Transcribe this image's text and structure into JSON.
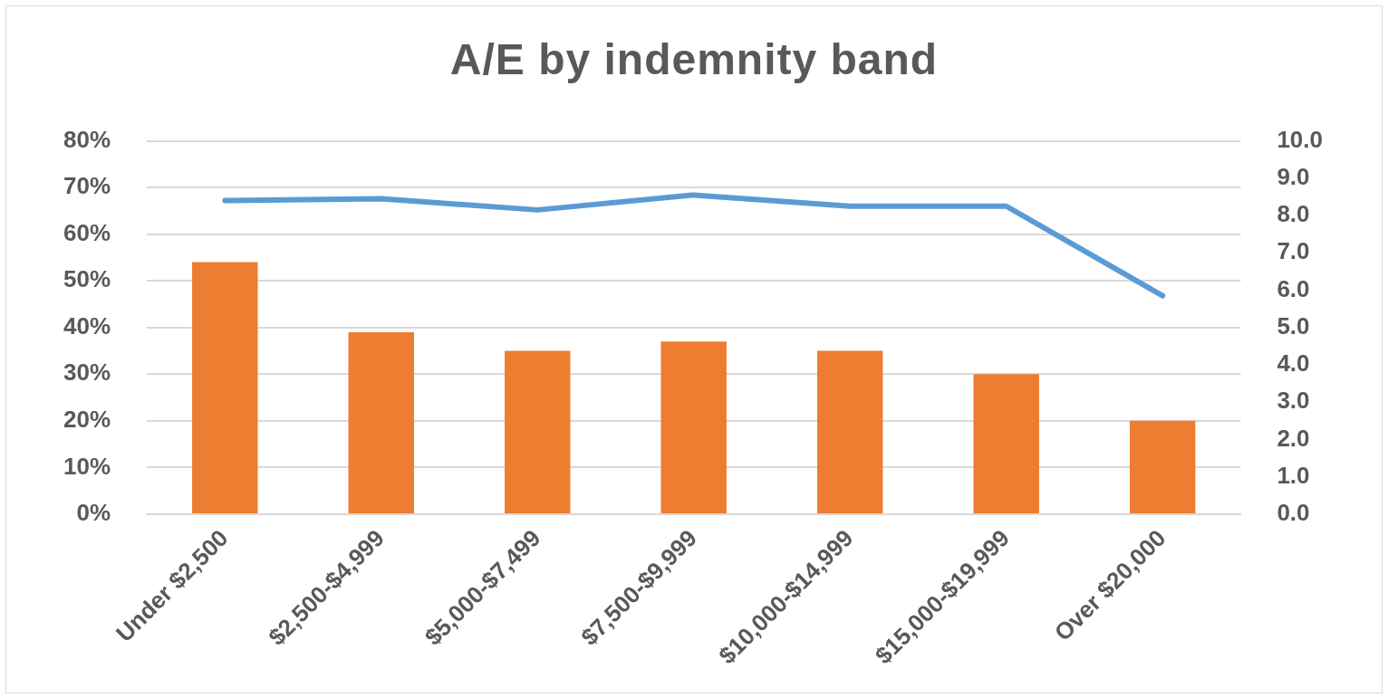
{
  "chart_data": {
    "type": "bar",
    "title": "A/E by indemnity band",
    "categories": [
      "Under $2,500",
      "$2,500-$4,999",
      "$5,000-$7,499",
      "$7,500-$9,999",
      "$10,000-$14,999",
      "$15,000-$19,999",
      "Over $20,000"
    ],
    "series": [
      {
        "color": "#ed7d31",
        "values": [
          54,
          39,
          35,
          37,
          35,
          30,
          20
        ]
      },
      {
        "type": "line",
        "axis": "y2",
        "color": "#5b9bd5",
        "values": [
          8.4,
          8.45,
          8.15,
          8.55,
          8.25,
          8.25,
          5.85
        ]
      }
    ],
    "ylim": [
      0,
      80
    ],
    "yticks": [
      {
        "value": 0,
        "label": "0%"
      },
      {
        "value": 10,
        "label": "10%"
      },
      {
        "value": 20,
        "label": "20%"
      },
      {
        "value": 30,
        "label": "30%"
      },
      {
        "value": 40,
        "label": "40%"
      },
      {
        "value": 50,
        "label": "50%"
      },
      {
        "value": 60,
        "label": "60%"
      },
      {
        "value": 70,
        "label": "70%"
      },
      {
        "value": 80,
        "label": "80%"
      }
    ],
    "y2lim": [
      0,
      10
    ],
    "y2ticks": [
      {
        "value": 0,
        "label": "0.0"
      },
      {
        "value": 1,
        "label": "1.0"
      },
      {
        "value": 2,
        "label": "2.0"
      },
      {
        "value": 3,
        "label": "3.0"
      },
      {
        "value": 4,
        "label": "4.0"
      },
      {
        "value": 5,
        "label": "5.0"
      },
      {
        "value": 6,
        "label": "6.0"
      },
      {
        "value": 7,
        "label": "7.0"
      },
      {
        "value": 8,
        "label": "8.0"
      },
      {
        "value": 9,
        "label": "9.0"
      },
      {
        "value": 10,
        "label": "10.0"
      }
    ],
    "grid": "y",
    "legend": false,
    "marker": "none",
    "line_style": "solid"
  }
}
